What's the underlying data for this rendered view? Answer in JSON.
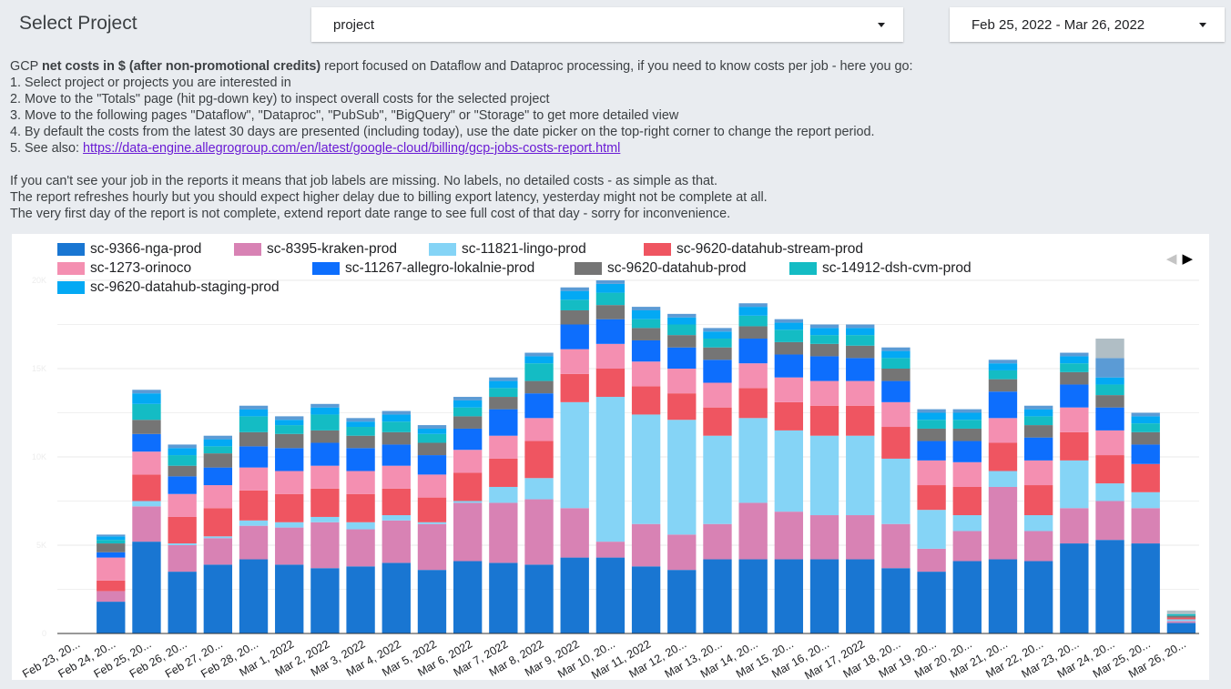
{
  "header": {
    "title": "Select Project",
    "project_select": "project",
    "date_range": "Feb 25, 2022 - Mar 26, 2022"
  },
  "description": {
    "intro_prefix": "GCP ",
    "intro_bold": "net costs in $ (after non-promotional credits)",
    "intro_suffix": " report focused on Dataflow and Dataproc processing, if you need to know costs per job - here you go:",
    "step1": "1. Select project or projects you are interested in",
    "step2": "2. Move to the  \"Totals\" page (hit pg-down key) to inspect overall costs for the selected project",
    "step3": "3. Move to the following pages \"Dataflow\", \"Dataproc\", \"PubSub\", \"BigQuery\" or \"Storage\" to get more detailed view",
    "step4": "4. By default the costs from the latest 30 days are presented (including today), use the date picker on the top-right corner to change the report period.",
    "step5_prefix": "5. See also: ",
    "step5_link": "https://data-engine.allegrogroup.com/en/latest/google-cloud/billing/gcp-jobs-costs-report.html",
    "note1": "If you can't see your job in the reports it means that job labels are missing. No labels, no detailed costs - as simple as that.",
    "note2": "The report refreshes hourly but you should expect higher delay due to billing export latency, yesterday might not be complete at all.",
    "note3": "The very first day of the report is not complete, extend report date range to see full cost of that day - sorry for inconvenience."
  },
  "pager": {
    "prev": "◀",
    "next": "▶"
  },
  "chart_data": {
    "type": "bar",
    "stacked": true,
    "ylim": [
      0,
      200
    ],
    "yticks": [
      "0",
      "5K",
      "10K",
      "15K",
      "20K"
    ],
    "yticks_faint": true,
    "grid": true,
    "legend_position": "top-left",
    "more_series_hidden_in_legend": true,
    "categories": [
      "Feb 23, 20...",
      "Feb 24, 20...",
      "Feb 25, 20...",
      "Feb 26, 20...",
      "Feb 27, 20...",
      "Feb 28, 20...",
      "Mar 1, 2022",
      "Mar 2, 2022",
      "Mar 3, 2022",
      "Mar 4, 2022",
      "Mar 5, 2022",
      "Mar 6, 2022",
      "Mar 7, 2022",
      "Mar 8, 2022",
      "Mar 9, 2022",
      "Mar 10, 20...",
      "Mar 11, 2022",
      "Mar 12, 20...",
      "Mar 13, 20...",
      "Mar 14, 20...",
      "Mar 15, 20...",
      "Mar 16, 20...",
      "Mar 17, 2022",
      "Mar 18, 20...",
      "Mar 19, 20...",
      "Mar 20, 20...",
      "Mar 21, 20...",
      "Mar 22, 20...",
      "Mar 23, 20...",
      "Mar 24, 20...",
      "Mar 25, 20...",
      "Mar 26, 20..."
    ],
    "series": [
      {
        "name": "sc-9366-nga-prod",
        "color": "#1976d2",
        "values": [
          0,
          18,
          52,
          35,
          39,
          42,
          39,
          37,
          38,
          40,
          36,
          41,
          40,
          39,
          43,
          43,
          38,
          36,
          42,
          42,
          42,
          42,
          42,
          37,
          35,
          41,
          42,
          41,
          51,
          53,
          51,
          6
        ]
      },
      {
        "name": "sc-8395-kraken-prod",
        "color": "#d882b4",
        "values": [
          0,
          6,
          20,
          15,
          15,
          19,
          21,
          26,
          21,
          24,
          26,
          33,
          34,
          37,
          28,
          9,
          24,
          20,
          20,
          32,
          27,
          25,
          25,
          25,
          13,
          17,
          41,
          17,
          20,
          22,
          20,
          1
        ]
      },
      {
        "name": "sc-11821-lingo-prod",
        "color": "#85d4f6",
        "values": [
          0,
          0,
          3,
          1,
          1,
          3,
          3,
          3,
          4,
          3,
          1,
          1,
          9,
          12,
          60,
          82,
          62,
          65,
          50,
          48,
          46,
          45,
          45,
          37,
          22,
          9,
          9,
          9,
          27,
          10,
          9,
          1
        ]
      },
      {
        "name": "sc-9620-datahub-stream-prod",
        "color": "#ef5561",
        "values": [
          0,
          6,
          15,
          15,
          16,
          17,
          16,
          16,
          16,
          15,
          14,
          16,
          16,
          21,
          16,
          16,
          16,
          15,
          16,
          17,
          16,
          17,
          17,
          18,
          14,
          16,
          16,
          17,
          16,
          16,
          16,
          1
        ]
      },
      {
        "name": "sc-1273-orinoco",
        "color": "#f48fb1",
        "values": [
          0,
          13,
          13,
          13,
          13,
          13,
          13,
          13,
          13,
          13,
          13,
          13,
          13,
          13,
          14,
          14,
          14,
          14,
          14,
          14,
          14,
          14,
          14,
          14,
          14,
          14,
          14,
          14,
          14,
          14,
          0,
          0
        ]
      },
      {
        "name": "sc-11267-allegro-lokalnie-prod",
        "color": "#0d6efd",
        "values": [
          0,
          3,
          10,
          10,
          10,
          12,
          13,
          13,
          13,
          12,
          11,
          12,
          15,
          14,
          14,
          14,
          12,
          12,
          13,
          14,
          13,
          14,
          13,
          12,
          11,
          12,
          15,
          13,
          13,
          13,
          11,
          0
        ]
      },
      {
        "name": "sc-9620-datahub-prod",
        "color": "#757575",
        "values": [
          0,
          5,
          8,
          6,
          8,
          8,
          8,
          7,
          7,
          7,
          7,
          7,
          7,
          7,
          8,
          8,
          7,
          7,
          7,
          7,
          7,
          7,
          7,
          7,
          7,
          7,
          7,
          7,
          7,
          7,
          7,
          1
        ]
      },
      {
        "name": "sc-14912-dsh-cvm-prod",
        "color": "#14bcc4",
        "values": [
          0,
          2,
          9,
          6,
          4,
          9,
          5,
          9,
          5,
          6,
          5,
          5,
          5,
          10,
          6,
          7,
          5,
          6,
          5,
          6,
          7,
          5,
          6,
          6,
          5,
          5,
          5,
          5,
          5,
          6,
          5,
          1
        ]
      },
      {
        "name": "sc-9620-datahub-staging-prod",
        "color": "#03a9f4",
        "values": [
          0,
          2,
          6,
          4,
          4,
          4,
          3,
          4,
          3,
          4,
          3,
          4,
          4,
          4,
          5,
          5,
          5,
          4,
          4,
          5,
          4,
          4,
          4,
          4,
          4,
          4,
          4,
          4,
          4,
          4,
          4,
          0
        ]
      },
      {
        "name": "",
        "color": "#5b9bd5",
        "values": [
          0,
          1,
          2,
          2,
          2,
          2,
          2,
          2,
          2,
          2,
          2,
          2,
          2,
          2,
          2,
          2,
          2,
          2,
          2,
          2,
          2,
          2,
          2,
          2,
          2,
          2,
          2,
          2,
          2,
          11,
          2,
          0
        ]
      },
      {
        "name": "",
        "color": "#b0bec5",
        "values": [
          0,
          0,
          0,
          0,
          0,
          0,
          0,
          0,
          0,
          0,
          0,
          0,
          0,
          0,
          0,
          0,
          0,
          0,
          0,
          0,
          0,
          0,
          0,
          0,
          0,
          0,
          0,
          0,
          0,
          11,
          0,
          2
        ]
      }
    ]
  }
}
